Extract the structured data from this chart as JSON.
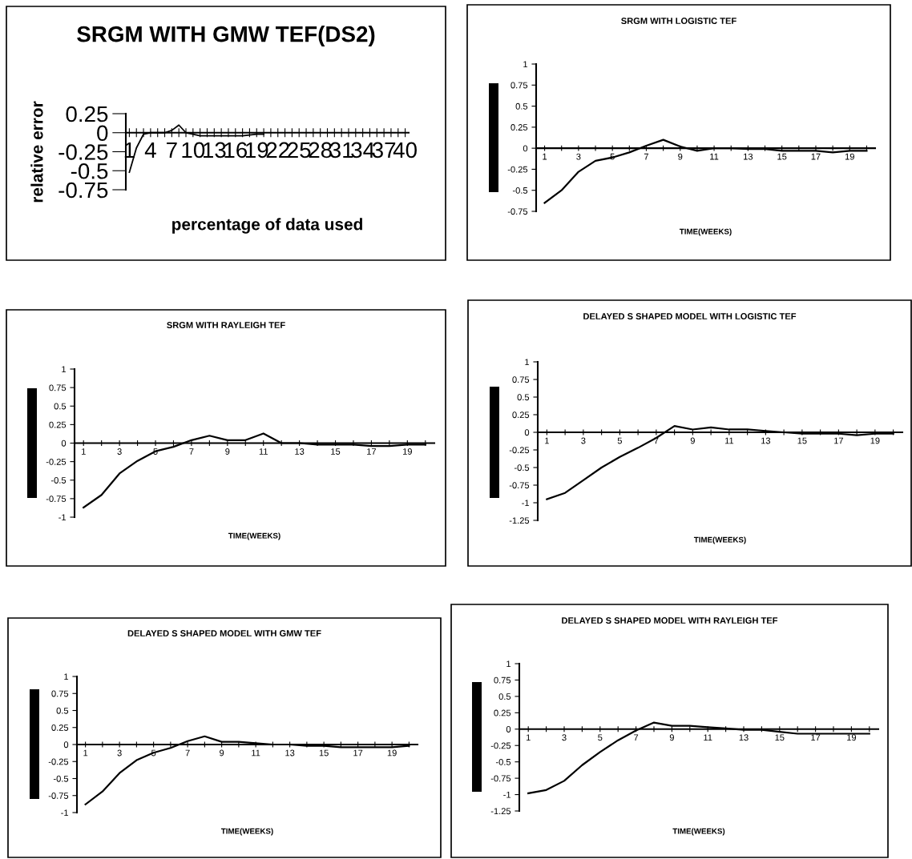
{
  "chart_data": [
    {
      "type": "line",
      "title": "SRGM WITH GMW TEF(DS2)",
      "xlabel": "percentage of data used",
      "ylabel": "relative error",
      "categories": [
        "1",
        null,
        null,
        "4",
        null,
        null,
        "7",
        null,
        null,
        "10",
        null,
        null,
        "13",
        null,
        null,
        "16",
        null,
        null,
        "19",
        null,
        null,
        "22",
        null,
        null,
        "25",
        null,
        null,
        "28",
        null,
        null,
        "31",
        null,
        null,
        "34",
        null,
        null,
        "37",
        null,
        null,
        "40"
      ],
      "series": [
        {
          "color": "#000000",
          "values": [
            -0.52,
            -0.2,
            -0.02,
            0,
            0,
            0,
            0.03,
            0.1,
            0,
            -0.02,
            -0.04,
            -0.04,
            -0.04,
            -0.04,
            -0.04,
            -0.04,
            -0.04,
            -0.03,
            -0.02,
            -0.02,
            null,
            null,
            null,
            null,
            null,
            null,
            null,
            null,
            null,
            null,
            null,
            null,
            null,
            null,
            null,
            null,
            null,
            null,
            null,
            null
          ]
        }
      ],
      "ylim": [
        -0.75,
        0.25
      ],
      "yticks": [
        -0.75,
        -0.5,
        -0.25,
        0,
        0.25
      ],
      "grid": false,
      "legend": false,
      "marker": "none",
      "line_style": "solid"
    },
    {
      "type": "line",
      "title": "SRGM WITH LOGISTIC TEF",
      "xlabel": "TIME(WEEKS)",
      "categories": [
        "1",
        null,
        "3",
        null,
        "5",
        null,
        "7",
        null,
        "9",
        null,
        "11",
        null,
        "13",
        null,
        "15",
        null,
        "17",
        null,
        "19",
        null
      ],
      "series": [
        {
          "color": "#000000",
          "values": [
            -0.65,
            -0.5,
            -0.28,
            -0.15,
            -0.11,
            -0.05,
            0.03,
            0.1,
            0.02,
            -0.03,
            0,
            0,
            -0.01,
            -0.01,
            -0.03,
            -0.03,
            -0.03,
            -0.05,
            -0.03,
            -0.03
          ]
        }
      ],
      "ylim": [
        -0.75,
        1
      ],
      "yticks": [
        -0.75,
        -0.5,
        -0.25,
        0,
        0.25,
        0.5,
        0.75,
        1
      ],
      "grid": false,
      "legend": false,
      "marker": "none",
      "line_style": "solid"
    },
    {
      "type": "line",
      "title": "SRGM WITH RAYLEIGH TEF",
      "xlabel": "TIME(WEEKS)",
      "categories": [
        "1",
        null,
        "3",
        null,
        "5",
        null,
        "7",
        null,
        "9",
        null,
        "11",
        null,
        "13",
        null,
        "15",
        null,
        "17",
        null,
        "19",
        null
      ],
      "series": [
        {
          "color": "#000000",
          "values": [
            -0.87,
            -0.7,
            -0.41,
            -0.24,
            -0.11,
            -0.05,
            0.04,
            0.1,
            0.04,
            0.04,
            0.13,
            0,
            0,
            -0.02,
            -0.02,
            -0.02,
            -0.04,
            -0.04,
            -0.02,
            -0.02
          ]
        }
      ],
      "ylim": [
        -1,
        1
      ],
      "yticks": [
        -1,
        -0.75,
        -0.5,
        -0.25,
        0,
        0.25,
        0.5,
        0.75,
        1
      ],
      "grid": false,
      "legend": false,
      "marker": "none",
      "line_style": "solid"
    },
    {
      "type": "line",
      "title": "DELAYED S SHAPED MODEL WITH LOGISTIC TEF",
      "xlabel": "TIME(WEEKS)",
      "categories": [
        "1",
        null,
        "3",
        null,
        "5",
        null,
        "7",
        null,
        "9",
        null,
        "11",
        null,
        "13",
        null,
        "15",
        null,
        "17",
        null,
        "19",
        null
      ],
      "series": [
        {
          "color": "#000000",
          "values": [
            -0.95,
            -0.86,
            -0.68,
            -0.5,
            -0.35,
            -0.22,
            -0.08,
            0.09,
            0.04,
            0.07,
            0.04,
            0.04,
            0.02,
            0,
            -0.02,
            -0.02,
            -0.02,
            -0.04,
            -0.02,
            -0.02
          ]
        }
      ],
      "ylim": [
        -1.25,
        1
      ],
      "yticks": [
        -1.25,
        -1,
        -0.75,
        -0.5,
        -0.25,
        0,
        0.25,
        0.5,
        0.75,
        1
      ],
      "grid": false,
      "legend": false,
      "marker": "none",
      "line_style": "solid"
    },
    {
      "type": "line",
      "title": "DELAYED S SHAPED MODEL WITH GMW TEF",
      "xlabel": "TIME(WEEKS)",
      "categories": [
        "1",
        null,
        "3",
        null,
        "5",
        null,
        "7",
        null,
        "9",
        null,
        "11",
        null,
        "13",
        null,
        "15",
        null,
        "17",
        null,
        "19",
        null
      ],
      "series": [
        {
          "color": "#000000",
          "values": [
            -0.88,
            -0.69,
            -0.42,
            -0.23,
            -0.12,
            -0.05,
            0.05,
            0.12,
            0.04,
            0.04,
            0.02,
            0,
            0,
            -0.02,
            -0.02,
            -0.04,
            -0.04,
            -0.04,
            -0.04,
            -0.02
          ]
        }
      ],
      "ylim": [
        -1,
        1
      ],
      "yticks": [
        -1,
        -0.75,
        -0.5,
        -0.25,
        0,
        0.25,
        0.5,
        0.75,
        1
      ],
      "grid": false,
      "legend": false,
      "marker": "none",
      "line_style": "solid"
    },
    {
      "type": "line",
      "title": "DELAYED S SHAPED MODEL WITH RAYLEIGH TEF",
      "xlabel": "TIME(WEEKS)",
      "categories": [
        "1",
        null,
        "3",
        null,
        "5",
        null,
        "7",
        null,
        "9",
        null,
        "11",
        null,
        "13",
        null,
        "15",
        null,
        "17",
        null,
        "19",
        null
      ],
      "series": [
        {
          "color": "#000000",
          "values": [
            -0.98,
            -0.93,
            -0.79,
            -0.55,
            -0.35,
            -0.17,
            -0.02,
            0.1,
            0.05,
            0.05,
            0.03,
            0.01,
            -0.01,
            -0.01,
            -0.04,
            -0.07,
            -0.07,
            -0.07,
            -0.07,
            -0.07
          ]
        }
      ],
      "ylim": [
        -1.25,
        1
      ],
      "yticks": [
        -1.25,
        -1,
        -0.75,
        -0.5,
        -0.25,
        0,
        0.25,
        0.5,
        0.75,
        1
      ],
      "grid": false,
      "legend": false,
      "marker": "none",
      "line_style": "solid"
    }
  ]
}
